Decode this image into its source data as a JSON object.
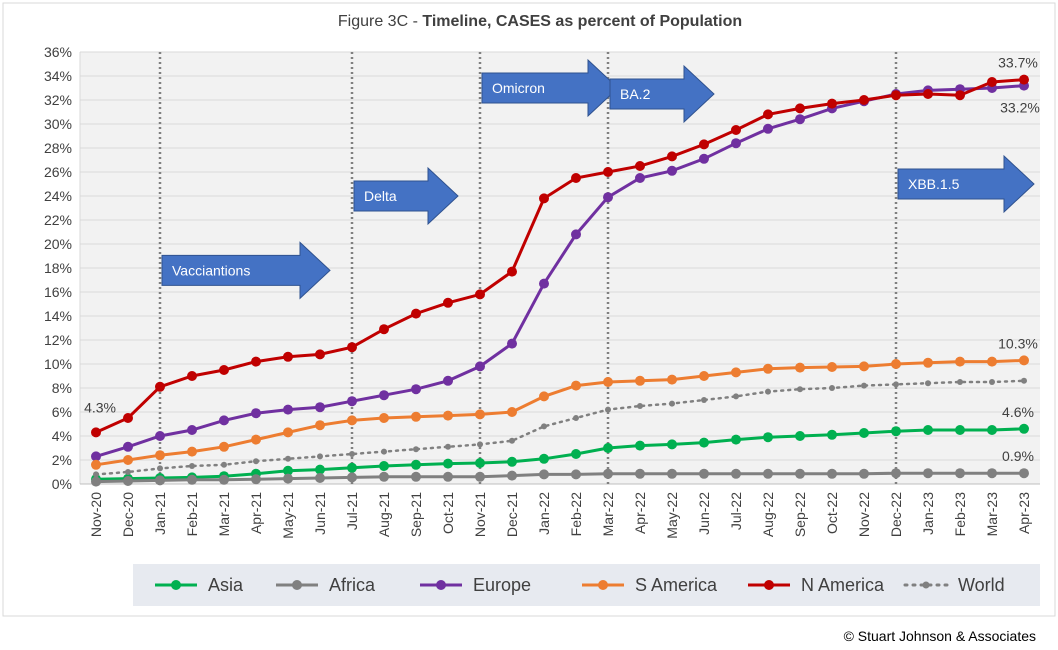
{
  "chart_data": {
    "type": "line",
    "title_prefix": "Figure 3C - ",
    "title_main": "Timeline, CASES as percent of Population",
    "xlabel": "",
    "ylabel": "",
    "ylim": [
      0,
      36
    ],
    "y_ticks": [
      "0%",
      "2%",
      "4%",
      "6%",
      "8%",
      "10%",
      "12%",
      "14%",
      "16%",
      "18%",
      "20%",
      "22%",
      "24%",
      "26%",
      "28%",
      "30%",
      "32%",
      "34%",
      "36%"
    ],
    "grid": true,
    "legend_position": "bottom",
    "categories": [
      "Nov-20",
      "Dec-20",
      "Jan-21",
      "Feb-21",
      "Mar-21",
      "Apr-21",
      "May-21",
      "Jun-21",
      "Jul-21",
      "Aug-21",
      "Sep-21",
      "Oct-21",
      "Nov-21",
      "Dec-21",
      "Jan-22",
      "Feb-22",
      "Mar-22",
      "Apr-22",
      "May-22",
      "Jun-22",
      "Jul-22",
      "Aug-22",
      "Sep-22",
      "Oct-22",
      "Nov-22",
      "Dec-22",
      "Jan-23",
      "Feb-23",
      "Mar-23",
      "Apr-23"
    ],
    "series": [
      {
        "name": "Asia",
        "color": "#00B050",
        "style": "solid",
        "values": [
          0.4,
          0.45,
          0.5,
          0.55,
          0.65,
          0.85,
          1.1,
          1.2,
          1.35,
          1.5,
          1.6,
          1.7,
          1.75,
          1.85,
          2.1,
          2.5,
          3.0,
          3.2,
          3.3,
          3.45,
          3.7,
          3.9,
          4.0,
          4.1,
          4.25,
          4.4,
          4.5,
          4.5,
          4.5,
          4.6
        ]
      },
      {
        "name": "Africa",
        "color": "#808080",
        "style": "solid",
        "values": [
          0.2,
          0.25,
          0.3,
          0.35,
          0.35,
          0.4,
          0.45,
          0.5,
          0.55,
          0.6,
          0.6,
          0.6,
          0.6,
          0.7,
          0.8,
          0.8,
          0.85,
          0.85,
          0.85,
          0.85,
          0.85,
          0.85,
          0.85,
          0.85,
          0.85,
          0.9,
          0.9,
          0.9,
          0.9,
          0.9
        ]
      },
      {
        "name": "Europe",
        "color": "#7030A0",
        "style": "solid",
        "values": [
          2.3,
          3.1,
          4.0,
          4.5,
          5.3,
          5.9,
          6.2,
          6.4,
          6.9,
          7.4,
          7.9,
          8.6,
          9.8,
          11.7,
          16.7,
          20.8,
          23.9,
          25.5,
          26.1,
          27.1,
          28.4,
          29.6,
          30.4,
          31.3,
          31.9,
          32.5,
          32.8,
          32.9,
          33.0,
          33.2
        ]
      },
      {
        "name": "S America",
        "color": "#ED7D31",
        "style": "solid",
        "values": [
          1.6,
          2.0,
          2.4,
          2.7,
          3.1,
          3.7,
          4.3,
          4.9,
          5.3,
          5.5,
          5.6,
          5.7,
          5.8,
          6.0,
          7.3,
          8.2,
          8.5,
          8.6,
          8.7,
          9.0,
          9.3,
          9.6,
          9.7,
          9.75,
          9.8,
          10.0,
          10.1,
          10.2,
          10.2,
          10.3
        ]
      },
      {
        "name": "N America",
        "color": "#C00000",
        "style": "solid",
        "values": [
          4.3,
          5.5,
          8.1,
          9.0,
          9.5,
          10.2,
          10.6,
          10.8,
          11.4,
          12.9,
          14.2,
          15.1,
          15.8,
          17.7,
          23.8,
          25.5,
          26.0,
          26.5,
          27.3,
          28.3,
          29.5,
          30.8,
          31.3,
          31.7,
          32.0,
          32.4,
          32.5,
          32.4,
          33.5,
          33.7
        ]
      },
      {
        "name": "World",
        "color": "#808080",
        "style": "dotted",
        "values": [
          0.8,
          1.0,
          1.3,
          1.5,
          1.6,
          1.9,
          2.1,
          2.3,
          2.5,
          2.7,
          2.9,
          3.1,
          3.3,
          3.6,
          4.8,
          5.5,
          6.2,
          6.5,
          6.7,
          7.0,
          7.3,
          7.7,
          7.9,
          8.0,
          8.2,
          8.3,
          8.4,
          8.5,
          8.5,
          8.6
        ]
      }
    ],
    "vertical_markers": [
      "Jan-21",
      "Jul-21",
      "Nov-21",
      "Mar-22",
      "Dec-22"
    ],
    "arrows": [
      {
        "label": "Vacciantions",
        "start": "Jan-21",
        "end": "Jun-21",
        "y": 17.8
      },
      {
        "label": "Delta",
        "start": "Jul-21",
        "end": "Oct-21",
        "y": 24.0
      },
      {
        "label": "Omicron",
        "start": "Nov-21",
        "end": "Mar-22",
        "y": 33.0
      },
      {
        "label": "BA.2",
        "start": "Mar-22",
        "end": "Jun-22",
        "y": 32.5
      },
      {
        "label": "XBB.1.5",
        "start": "Dec-22",
        "end": "Apr-23",
        "y": 25.0
      }
    ],
    "annotations": [
      {
        "text": "4.3%",
        "at": "Nov-20",
        "value": 4.3,
        "placement": "above-left"
      },
      {
        "text": "33.7%",
        "at": "Apr-23",
        "value": 33.7,
        "placement": "above"
      },
      {
        "text": "33.2%",
        "at": "Apr-23",
        "value": 33.2,
        "placement": "below"
      },
      {
        "text": "10.3%",
        "at": "Apr-23",
        "value": 10.3,
        "placement": "above"
      },
      {
        "text": "4.6%",
        "at": "Apr-23",
        "value": 4.6,
        "placement": "above"
      },
      {
        "text": "0.9%",
        "at": "Apr-23",
        "value": 0.9,
        "placement": "above"
      }
    ]
  },
  "footer": {
    "copyright": "© Stuart Johnson & Associates"
  },
  "colors": {
    "background": "#FFFFFF",
    "plot_area": "#F2F2F2",
    "legend_area": "#E7EAF0",
    "gridline": "#D9D9D9",
    "arrow_fill": "#4472C4",
    "arrow_stroke": "#2F528F",
    "marker_line": "#808080",
    "text": "#404040"
  }
}
